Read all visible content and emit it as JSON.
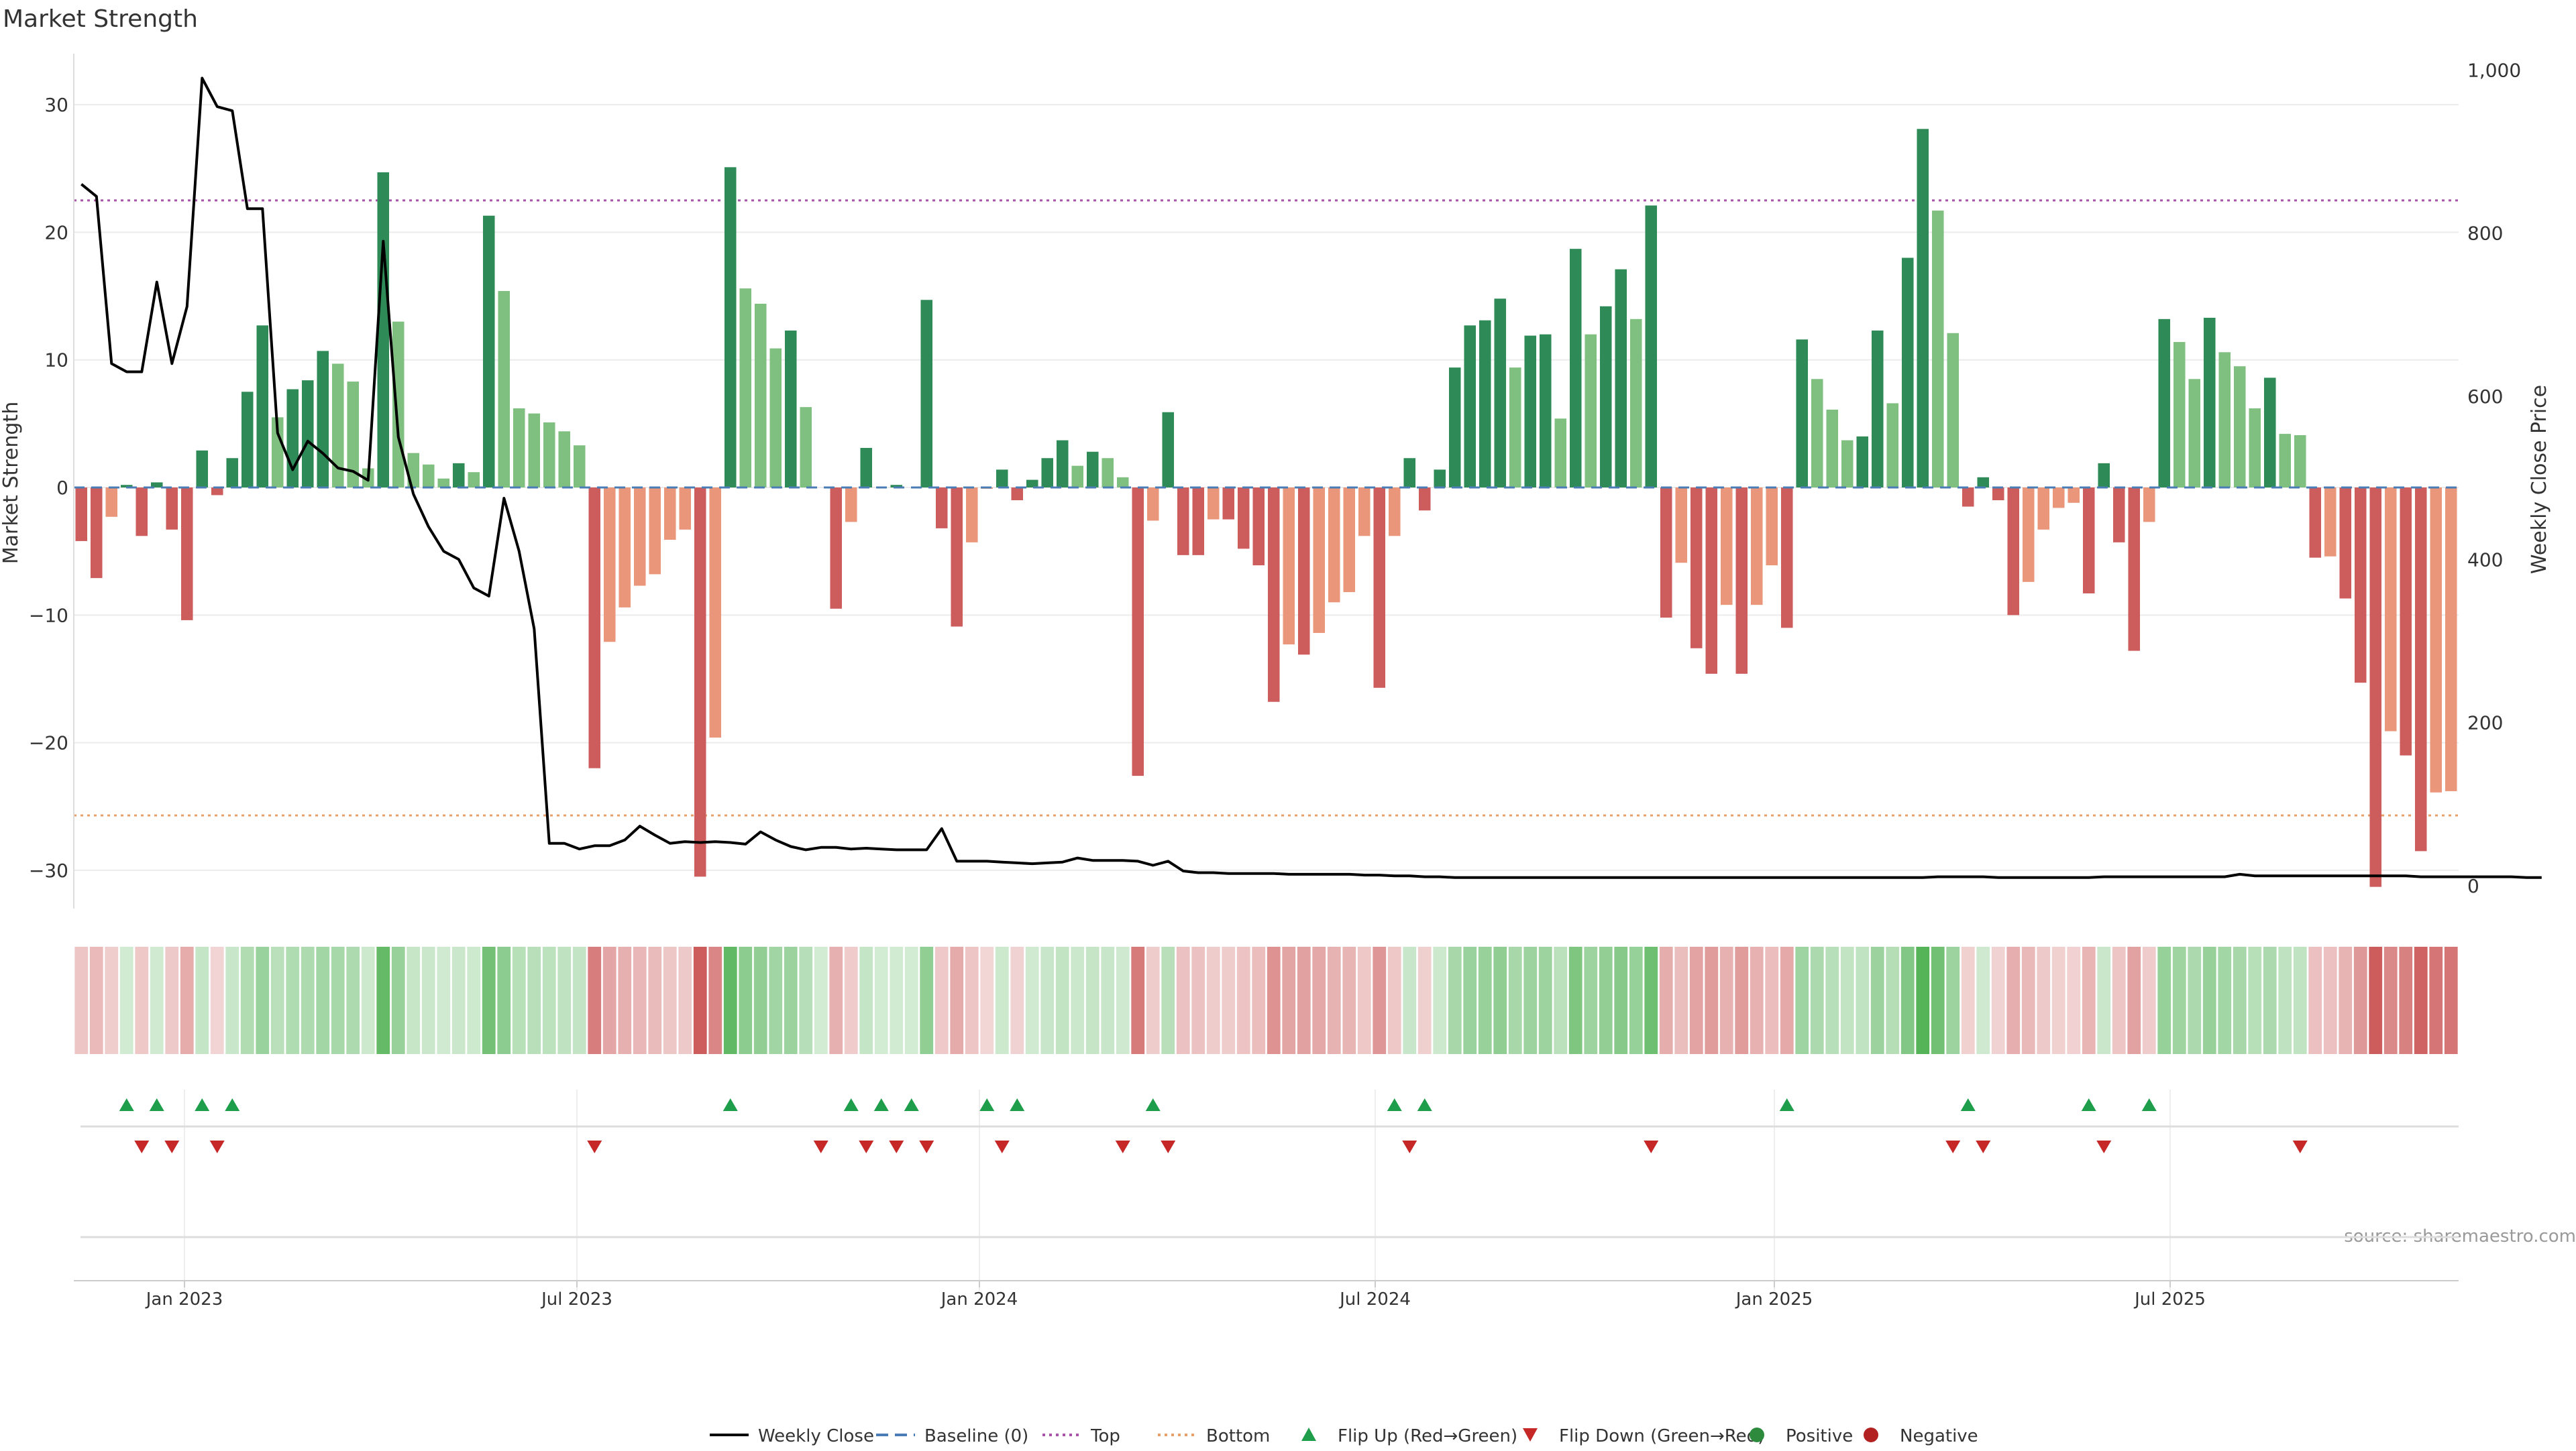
{
  "chart_data": {
    "type": "bar",
    "title": "Market Strength",
    "ylabel": "Market Strength",
    "y2label": "Weekly Close Price",
    "ylim": [
      -33,
      34
    ],
    "y2lim": [
      -28,
      1020
    ],
    "yticks": [
      30,
      20,
      10,
      0,
      -10,
      -20,
      -30
    ],
    "ytick_labels": [
      "30",
      "20",
      "10",
      "0",
      "−10",
      "−20",
      "−30"
    ],
    "y2ticks": [
      1000,
      800,
      600,
      400,
      200,
      0
    ],
    "y2tick_labels": [
      "1,000",
      "800",
      "600",
      "400",
      "200",
      "0"
    ],
    "xtick_labels": [
      "Jan 2023",
      "Jul 2023",
      "Jan 2024",
      "Jul 2024",
      "Jan 2025",
      "Jul 2025"
    ],
    "grid": true,
    "top_line": 22.5,
    "bottom_line": -25.7,
    "source_note": "source: sharemaestro.com",
    "legend": [
      {
        "label": "Weekly Close",
        "kind": "solid",
        "color": "#000000"
      },
      {
        "label": "Baseline (0)",
        "kind": "dash",
        "color": "#4a7db5"
      },
      {
        "label": "Top",
        "kind": "dot",
        "color": "#a855a8"
      },
      {
        "label": "Bottom",
        "kind": "dot",
        "color": "#e8a06a"
      },
      {
        "label": "Flip Up (Red→Green)",
        "kind": "tri-up",
        "color": "#1e9e4a"
      },
      {
        "label": "Flip Down (Green→Red)",
        "kind": "tri-down",
        "color": "#c62828"
      },
      {
        "label": "Positive",
        "kind": "dot-marker",
        "color": "#2e8b3e"
      },
      {
        "label": "Negative",
        "kind": "dot-marker",
        "color": "#b22222"
      }
    ],
    "colors": {
      "pos_strong": "#2e8b57",
      "pos_weak": "#7fbf7f",
      "neg_strong": "#cd5c5c",
      "neg_weak": "#e9967a",
      "flip_up": "#1e9e4a",
      "flip_down": "#c62828",
      "close_line": "#000000"
    },
    "series": [
      {
        "name": "Market Strength",
        "values": [
          -4.2,
          -7.1,
          -2.3,
          0.2,
          -3.8,
          0.4,
          -3.3,
          -10.4,
          2.9,
          -0.6,
          2.3,
          7.5,
          12.7,
          5.5,
          7.7,
          8.4,
          10.7,
          9.7,
          8.3,
          1.5,
          24.7,
          13.0,
          2.7,
          1.8,
          0.7,
          1.9,
          1.2,
          21.3,
          15.4,
          6.2,
          5.8,
          5.1,
          4.4,
          3.3,
          -22.0,
          -12.1,
          -9.4,
          -7.7,
          -6.8,
          -4.1,
          -3.3,
          -30.5,
          -19.6,
          25.1,
          15.6,
          14.4,
          10.9,
          12.3,
          6.3,
          0.0,
          -9.5,
          -2.7,
          3.1,
          0.0,
          0.2,
          0.0,
          14.7,
          -3.2,
          -10.9,
          -4.3,
          -0.1,
          1.4,
          -1.0,
          0.6,
          2.3,
          3.7,
          1.7,
          2.8,
          2.3,
          0.8,
          -22.6,
          -2.6,
          5.9,
          -5.3,
          -5.3,
          -2.5,
          -2.5,
          -4.8,
          -6.1,
          -16.8,
          -12.3,
          -13.1,
          -11.4,
          -9.0,
          -8.2,
          -3.8,
          -15.7,
          -3.8,
          2.3,
          -1.8,
          1.4,
          9.4,
          12.7,
          13.1,
          14.8,
          9.4,
          11.9,
          12.0,
          5.4,
          18.7,
          12.0,
          14.2,
          17.1,
          13.2,
          22.1,
          -10.2,
          -5.9,
          -12.6,
          -14.6,
          -9.2,
          -14.6,
          -9.2,
          -6.1,
          -11.0,
          11.6,
          8.5,
          6.1,
          3.7,
          4.0,
          12.3,
          6.6,
          18.0,
          28.1,
          21.7,
          12.1,
          -1.5,
          0.8,
          -1.0,
          -10.0,
          -7.4,
          -3.3,
          -1.6,
          -1.2,
          -8.3,
          1.9,
          -4.3,
          -12.8,
          -2.7,
          13.2,
          11.4,
          8.5,
          13.3,
          10.6,
          9.5,
          6.2,
          8.6,
          4.2,
          4.1,
          -5.5,
          -5.4,
          -8.7,
          -15.3,
          -31.3,
          -19.1,
          -21.0,
          -28.5,
          -23.9,
          -23.8
        ]
      },
      {
        "name": "Weekly Close",
        "values": [
          860,
          845,
          640,
          630,
          630,
          740,
          640,
          710,
          990,
          955,
          950,
          830,
          830,
          555,
          510,
          545,
          530,
          512,
          508,
          497,
          790,
          550,
          480,
          440,
          410,
          400,
          365,
          355,
          475,
          410,
          315,
          52,
          52,
          45,
          49,
          49,
          56,
          73,
          62,
          52,
          54,
          53,
          54,
          53,
          51,
          66,
          56,
          48,
          44,
          47,
          47,
          45,
          46,
          45,
          44,
          44,
          44,
          70,
          30,
          30,
          30,
          29,
          28,
          27,
          28,
          29,
          34,
          31,
          31,
          31,
          30,
          25,
          30,
          18,
          16,
          16,
          15,
          15,
          15,
          15,
          14,
          14,
          14,
          14,
          14,
          13,
          13,
          12,
          12,
          11,
          11,
          10,
          10,
          10,
          10,
          10,
          10,
          10,
          10,
          10,
          10,
          10,
          10,
          10,
          10,
          10,
          10,
          10,
          10,
          10,
          10,
          10,
          10,
          10,
          10,
          10,
          10,
          10,
          10,
          10,
          10,
          10,
          10,
          11,
          11,
          11,
          11,
          10,
          10,
          10,
          10,
          10,
          10,
          10,
          11,
          11,
          11,
          11,
          11,
          11,
          11,
          11,
          11,
          14,
          12,
          12,
          12,
          12,
          12,
          12,
          12,
          12,
          12,
          12,
          12,
          11,
          11,
          11,
          11,
          11,
          11,
          11,
          10,
          10
        ]
      }
    ],
    "flip_up_index": [
      3,
      5,
      8,
      10,
      43,
      51,
      53,
      55,
      60,
      62,
      71,
      87,
      89,
      113,
      125,
      133,
      137
    ],
    "flip_down_index": [
      4,
      6,
      9,
      34,
      49,
      52,
      54,
      56,
      61,
      69,
      72,
      88,
      104,
      124,
      126,
      134,
      147
    ]
  }
}
